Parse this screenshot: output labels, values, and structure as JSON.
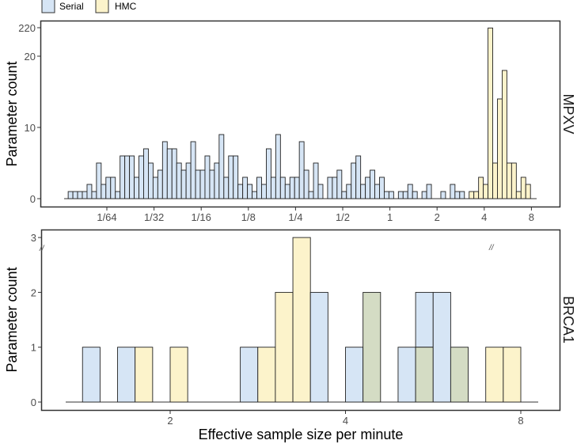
{
  "chart_data": [
    {
      "type": "bar",
      "panel": "MPXV",
      "xlabel": "",
      "ylabel": "Parameter count",
      "x_scale": "log2",
      "bin_start_log2": -6.82,
      "bin_width_log2": 0.1,
      "x_ticks": [
        {
          "log2": -6,
          "label": "1/64"
        },
        {
          "log2": -5,
          "label": "1/32"
        },
        {
          "log2": -4,
          "label": "1/16"
        },
        {
          "log2": -3,
          "label": "1/8"
        },
        {
          "log2": -2,
          "label": "1/4"
        },
        {
          "log2": -1,
          "label": "1/2"
        },
        {
          "log2": 0,
          "label": "1"
        },
        {
          "log2": 1,
          "label": "2"
        },
        {
          "log2": 2,
          "label": "4"
        },
        {
          "log2": 3,
          "label": "8"
        }
      ],
      "y_ticks": [
        {
          "value": 0,
          "label": "0"
        },
        {
          "value": 10,
          "label": "10"
        },
        {
          "value": 20,
          "label": "20"
        },
        {
          "value": 220,
          "label": "220"
        }
      ],
      "y_axis_break": [
        20,
        220
      ],
      "series": [
        {
          "name": "Serial",
          "start_bin": 0,
          "values": [
            1,
            1,
            1,
            1,
            2,
            1,
            5,
            2,
            3,
            3,
            1,
            6,
            6,
            6,
            3,
            6,
            7,
            5,
            3,
            4,
            8,
            7,
            7,
            5,
            4,
            5,
            8,
            4,
            4,
            6,
            4,
            5,
            9,
            3,
            6,
            6,
            2,
            3,
            2,
            1,
            3,
            2,
            7,
            3,
            9,
            3,
            2,
            3,
            3,
            8,
            4,
            1,
            5,
            2,
            0,
            3,
            3,
            4,
            1,
            2,
            5,
            6,
            2,
            3,
            4,
            2,
            3,
            1,
            1,
            0,
            1,
            1,
            2,
            1,
            0,
            1,
            2,
            0,
            0,
            1,
            0,
            2,
            1,
            1
          ]
        },
        {
          "name": "HMC",
          "start_bin": 85,
          "values": [
            1,
            1,
            3,
            2,
            218,
            5,
            14,
            18,
            5,
            5,
            1,
            3,
            2
          ]
        }
      ]
    },
    {
      "type": "bar",
      "panel": "BRCA1",
      "xlabel": "Effective sample size per minute",
      "ylabel": "Parameter count",
      "x_scale": "log2",
      "bin_start_log2": 0.5,
      "bin_width_log2": 0.1,
      "x_ticks": [
        {
          "log2": 1,
          "label": "2"
        },
        {
          "log2": 2,
          "label": "4"
        },
        {
          "log2": 3,
          "label": "8"
        }
      ],
      "y_ticks": [
        {
          "value": 0,
          "label": "0"
        },
        {
          "value": 1,
          "label": "1"
        },
        {
          "value": 2,
          "label": "2"
        },
        {
          "value": 3,
          "label": "3"
        }
      ],
      "series": [
        {
          "name": "Serial",
          "bins": [
            [
              0,
              1
            ],
            [
              2,
              1
            ],
            [
              9,
              1
            ],
            [
              13,
              2
            ],
            [
              15,
              1
            ],
            [
              16,
              2
            ],
            [
              18,
              1
            ],
            [
              19,
              2
            ],
            [
              20,
              2
            ],
            [
              21,
              1
            ]
          ]
        },
        {
          "name": "HMC",
          "bins": [
            [
              3,
              1
            ],
            [
              5,
              1
            ],
            [
              10,
              1
            ],
            [
              11,
              2
            ],
            [
              12,
              3
            ],
            [
              16,
              2
            ],
            [
              19,
              1
            ],
            [
              21,
              1
            ],
            [
              23,
              1
            ],
            [
              24,
              1
            ]
          ]
        }
      ]
    }
  ],
  "legend": [
    {
      "label": "Serial",
      "color": "#d6e5f5"
    },
    {
      "label": "HMC",
      "color": "#fcf3cb"
    }
  ],
  "overlap_color": "#d4dcc4",
  "break_mark": "//"
}
